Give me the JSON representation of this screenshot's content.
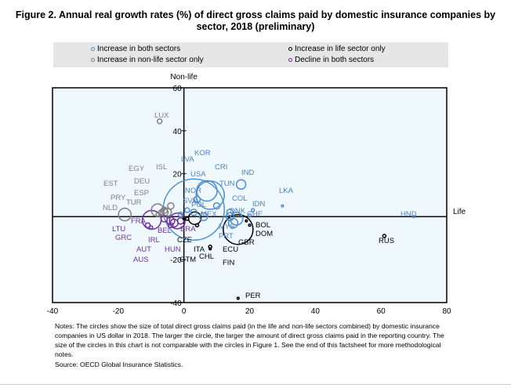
{
  "title": "Figure 2. Annual real growth rates (%) of direct gross claims paid by domestic insurance companies by sector, 2018 (preliminary)",
  "legend": [
    {
      "label": "Increase in both sectors",
      "color": "#4f8fd0"
    },
    {
      "label": "Increase in life sector only",
      "color": "#000000"
    },
    {
      "label": "Increase in non-life sector only",
      "color": "#808080"
    },
    {
      "label": "Decline in both sectors",
      "color": "#7030a0"
    }
  ],
  "chart_data": {
    "type": "scatter",
    "xlabel": "Life",
    "ylabel": "Non-life",
    "xlim": [
      -40,
      80
    ],
    "ylim": [
      -40,
      60
    ],
    "xticks": [
      "-40",
      "-20",
      "0",
      "20",
      "40",
      "60",
      "80"
    ],
    "yticks": [
      "60",
      "40",
      "20",
      "",
      "-20",
      "-40"
    ],
    "background": "#eef8fd",
    "points": [
      {
        "label": "LUX",
        "x": -7.4,
        "y": 44.4,
        "size": 3,
        "group": 2
      },
      {
        "label": "EGY",
        "x": -6,
        "y": 3,
        "size": 4,
        "group": 2
      },
      {
        "label": "ISL",
        "x": -4,
        "y": 5,
        "size": 4,
        "group": 2
      },
      {
        "label": "EST",
        "x": -8,
        "y": 1,
        "size": 2,
        "group": 2
      },
      {
        "label": "DEU",
        "x": -8,
        "y": 3,
        "size": 8,
        "group": 2
      },
      {
        "label": "ESP",
        "x": -6,
        "y": 2,
        "size": 5,
        "group": 2
      },
      {
        "label": "PRY",
        "x": -7,
        "y": 2,
        "size": 3,
        "group": 2
      },
      {
        "label": "TUR",
        "x": -5,
        "y": 2,
        "size": 5,
        "group": 2
      },
      {
        "label": "NLD",
        "x": -18,
        "y": 1,
        "size": 8,
        "group": 2
      },
      {
        "label": "LVA",
        "x": -1,
        "y": 1,
        "size": 3,
        "group": 0
      },
      {
        "label": "USA",
        "x": 3,
        "y": 3.3,
        "size": 39,
        "group": 0
      },
      {
        "label": "KOR",
        "x": 7,
        "y": 12,
        "size": 13,
        "group": 0
      },
      {
        "label": "CRI",
        "x": 8,
        "y": 10,
        "size": 18,
        "group": 0
      },
      {
        "label": "IND",
        "x": 17.4,
        "y": 15,
        "size": 6,
        "group": 0
      },
      {
        "label": "TUN",
        "x": 10,
        "y": 5,
        "size": 4,
        "group": 0
      },
      {
        "label": "COL",
        "x": 14,
        "y": 2,
        "size": 4,
        "group": 0
      },
      {
        "label": "LKA",
        "x": 30,
        "y": 5,
        "size": 1,
        "group": 0
      },
      {
        "label": "NOR",
        "x": 4,
        "y": 8,
        "size": 4,
        "group": 0
      },
      {
        "label": "SVN",
        "x": 1,
        "y": 3,
        "size": 3,
        "group": 0
      },
      {
        "label": "POL",
        "x": 3,
        "y": 2,
        "size": 4,
        "group": 0
      },
      {
        "label": "IDN",
        "x": 21,
        "y": 3,
        "size": 2,
        "group": 0
      },
      {
        "label": "MEX",
        "x": 6,
        "y": 0,
        "size": 5,
        "group": 0
      },
      {
        "label": "DNK",
        "x": 14,
        "y": 0,
        "size": 5,
        "group": 0
      },
      {
        "label": "CHE",
        "x": 20,
        "y": 0.5,
        "size": 2,
        "group": 0
      },
      {
        "label": "HND",
        "x": 70,
        "y": 0,
        "size": 1,
        "group": 0
      },
      {
        "label": "MYS",
        "x": 16,
        "y": -1,
        "size": 8,
        "group": 0
      },
      {
        "label": "PRT",
        "x": 15,
        "y": -3,
        "size": 6,
        "group": 0
      },
      {
        "label": "FRA",
        "x": -9.8,
        "y": -1.5,
        "size": 12,
        "group": 3
      },
      {
        "label": "LTU",
        "x": -11,
        "y": -4,
        "size": 3,
        "group": 3
      },
      {
        "label": "BEL",
        "x": -6,
        "y": -1,
        "size": 4,
        "group": 3
      },
      {
        "label": "GRC",
        "x": -10,
        "y": -5,
        "size": 2,
        "group": 3
      },
      {
        "label": "IRL",
        "x": -4,
        "y": -2,
        "size": 5,
        "group": 3
      },
      {
        "label": "BRA",
        "x": -2,
        "y": -2,
        "size": 10,
        "group": 3
      },
      {
        "label": "AUT",
        "x": -3,
        "y": -3,
        "size": 5,
        "group": 3
      },
      {
        "label": "HUN",
        "x": -1,
        "y": -2,
        "size": 4,
        "group": 3
      },
      {
        "label": "AUS",
        "x": -4,
        "y": -4,
        "size": 3,
        "group": 3
      },
      {
        "label": "GBR",
        "x": 16.5,
        "y": -6,
        "size": 19,
        "group": 1
      },
      {
        "label": "ITA",
        "x": 3.3,
        "y": -0.7,
        "size": 8,
        "group": 1
      },
      {
        "label": "BOL",
        "x": 20,
        "y": -4,
        "size": 1,
        "group": 1
      },
      {
        "label": "DOM",
        "x": 19,
        "y": -2,
        "size": 1,
        "group": 1
      },
      {
        "label": "CZE",
        "x": 1,
        "y": -1,
        "size": 2,
        "group": 1
      },
      {
        "label": "ECU",
        "x": 8,
        "y": -14,
        "size": 2,
        "group": 1
      },
      {
        "label": "RUS",
        "x": 61,
        "y": -9,
        "size": 2,
        "group": 1
      },
      {
        "label": "GTM",
        "x": 0,
        "y": -1,
        "size": 1,
        "group": 1
      },
      {
        "label": "CHL",
        "x": 4,
        "y": -4,
        "size": 2,
        "group": 1
      },
      {
        "label": "FIN",
        "x": 8,
        "y": -15,
        "size": 1,
        "group": 1
      },
      {
        "label": "PER",
        "x": 16.5,
        "y": -38,
        "size": 1,
        "group": 1
      }
    ]
  },
  "notes": "Notes: The circles show the size of total direct gross claims paid (in the life and non-life sectors combined) by domestic insurance companies in US dollar in 2018. The larger the circle, the larger the amount of direct gross claims paid in the reporting country. The size of the circles in this chart is not comparable with the circles in Figure 1. See the end of this factsheet for more methodological notes.",
  "source": "Source: OECD Global Insurance Statistics."
}
